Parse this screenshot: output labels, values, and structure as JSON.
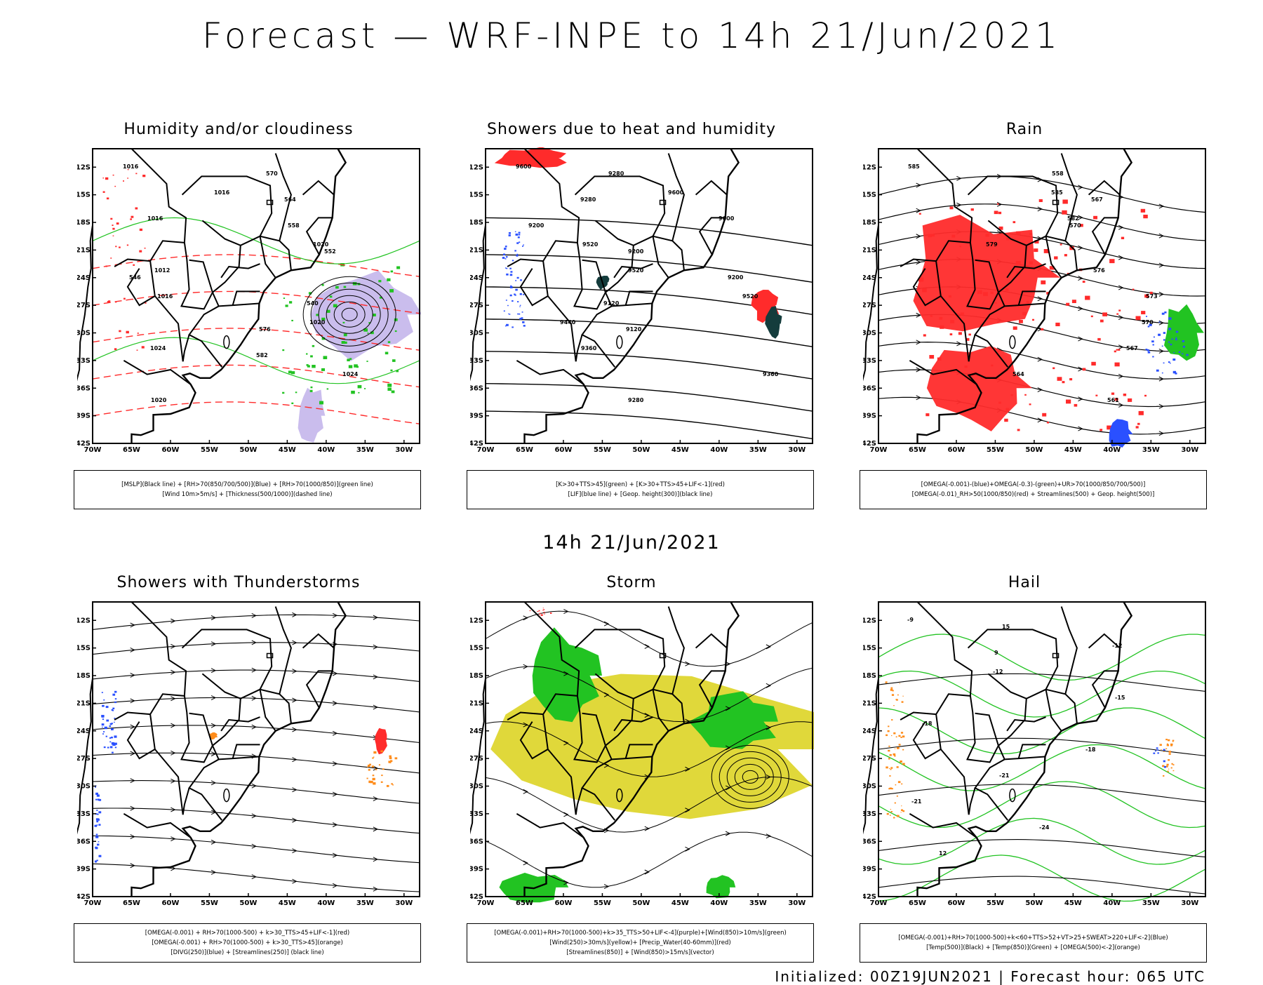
{
  "title": "Forecast — WRF-INPE to 14h 21/Jun/2021",
  "mid_title": "14h 21/Jun/2021",
  "footer": "Initialized: 00Z19JUN2021 | Forecast hour: 065 UTC",
  "axes": {
    "lat_ticks": [
      "12S",
      "15S",
      "18S",
      "21S",
      "24S",
      "27S",
      "30S",
      "33S",
      "36S",
      "39S",
      "42S"
    ],
    "lon_ticks": [
      "70W",
      "65W",
      "60W",
      "55W",
      "50W",
      "45W",
      "40W",
      "35W",
      "30W"
    ]
  },
  "colors": {
    "black_line": "#000000",
    "green": "#22c322",
    "blue": "#2a50ff",
    "red": "#ff2b2b",
    "orange": "#ff8c1a",
    "yellow": "#e0d83a",
    "purple": "#8a6dd8",
    "dark_teal": "#143c3c"
  },
  "panels": [
    {
      "id": "humidity",
      "title": "Humidity and/or cloudiness",
      "legend": [
        "[MSLP](Black line) + [RH>70(850/700/500)](Blue) + [RH>70(1000/850)](green line)",
        "[Wind 10m>5m/s] + [Thickness(500/1000)](dashed line)"
      ],
      "labels": [
        "1016",
        "1016",
        "1016",
        "1020",
        "1012",
        "1016",
        "1020",
        "1024",
        "1024",
        "1020",
        "570",
        "564",
        "558",
        "552",
        "546",
        "540",
        "576",
        "582"
      ]
    },
    {
      "id": "showers",
      "title": "Showers due to heat and humidity",
      "legend": [
        "[K>30+TTS>45](green) + [K>30+TTS>45+LIF<-1](red)",
        "[LIF](blue line) + [Geop. height(300)](black line)"
      ],
      "labels": [
        "9600",
        "9600",
        "9600",
        "9520",
        "9520",
        "9520",
        "9440",
        "9360",
        "9360",
        "9280",
        "9280",
        "9280",
        "9200",
        "9200",
        "9200",
        "9120",
        "9120"
      ]
    },
    {
      "id": "rain",
      "title": "Rain",
      "legend": [
        "[OMEGA(-0.001)-(blue)+OMEGA(-0.3)-(green)+UR>70(1000/850/700/500)]",
        "[OMEGA(-0.01)_RH>50(1000/850)(red) + Streamlines(500) + Geop. height(500)]"
      ],
      "labels": [
        "585",
        "585",
        "582",
        "579",
        "576",
        "573",
        "570",
        "567",
        "564",
        "561",
        "558",
        "567",
        "570"
      ]
    },
    {
      "id": "thunderstorms",
      "title": "Showers with Thunderstorms",
      "legend": [
        "[OMEGA(-0.001) + RH>70(1000-500) + k>30_TTS>45+LIF<-1](red)",
        "[OMEGA(-0.001) + RH>70(1000-500) + k>30_TTS>45](orange)",
        "[DIVG(250)](blue) + [Streamlines(250)] (black line)"
      ],
      "labels": []
    },
    {
      "id": "storm",
      "title": "Storm",
      "legend": [
        "[OMEGA(-0.001)+RH>70(1000-500)+k>35_TTS>50+LIF<-4](purple)+[Wind(850)>10m/s](green)",
        "[Wind(250)>30m/s](yellow)+ [Precip_Water(40-60mm)](red)",
        "[Streamlines(850)] + [Wind(850)>15m/s](vector)"
      ],
      "labels": []
    },
    {
      "id": "hail",
      "title": "Hail",
      "legend": [
        "[OMEGA(-0.001)+RH>70(1000-500)+k<60+TTS>52+VT>25+SWEAT>220+LIF<-2](Blue)",
        "[Temp(500)](Black) + [Temp(850)](Green) + [OMEGA(500)<-2](orange)"
      ],
      "labels": [
        "-9",
        "-12",
        "-12",
        "-15",
        "-18",
        "-18",
        "-21",
        "-21",
        "-24",
        "12",
        "15",
        "9"
      ]
    }
  ]
}
